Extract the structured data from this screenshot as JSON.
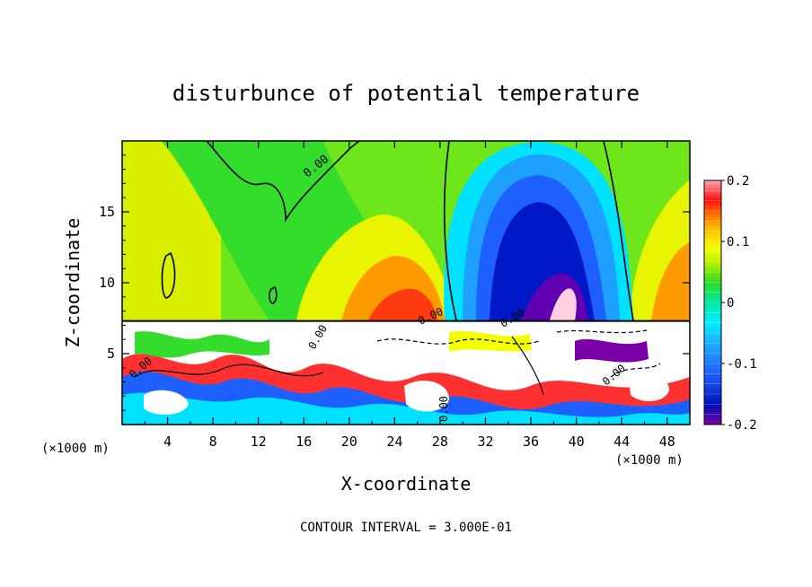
{
  "chart_data": {
    "type": "heatmap",
    "title": "disturbunce of potential temperature",
    "xlabel": "X-coordinate",
    "ylabel": "Z-coordinate",
    "x_unit": "(×1000 m)",
    "y_unit": "(×1000 m)",
    "xlim": [
      0,
      50
    ],
    "ylim": [
      0,
      20
    ],
    "x_ticks": [
      4,
      8,
      12,
      16,
      20,
      24,
      28,
      32,
      36,
      40,
      44,
      48
    ],
    "y_ticks": [
      5,
      10,
      15
    ],
    "contour_interval": "CONTOUR INTERVAL = 3.000E-01",
    "contour_labels": [
      "0.00",
      "0.00",
      "0.00",
      "0.00",
      "0.00",
      "0.00",
      "0.00"
    ],
    "colorbar": {
      "min": -0.2,
      "max": 0.2,
      "tick_labels": [
        "0.2",
        "0.1",
        "0",
        "-0.1",
        "-0.2"
      ],
      "tick_values": [
        0.2,
        0.1,
        0,
        -0.1,
        -0.2
      ],
      "levels": 24
    },
    "colors": {
      "min": "#7a00a8",
      "deep_blue": "#0018c8",
      "blue": "#1e8cff",
      "cyan": "#00f0ff",
      "green": "#2cdc24",
      "yellow": "#f4ff00",
      "orange": "#ff8c00",
      "red": "#ff1010",
      "max": "#ffa6b0"
    },
    "lower_boundary_z": 7.3
  }
}
